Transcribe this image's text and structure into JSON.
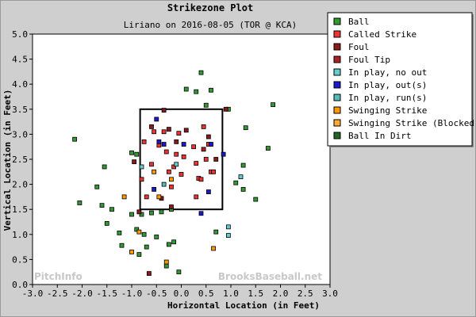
{
  "chart_data": {
    "type": "scatter",
    "title": "Strikezone Plot",
    "subtitle": "Liriano on 2016-08-05 (TOR @ KCA)",
    "xlabel": "Horizontal Location (in Feet)",
    "ylabel": "Vertical Location (in Feet)",
    "xlim": [
      -3.0,
      3.0
    ],
    "ylim": [
      0.0,
      5.0
    ],
    "x_ticks": [
      "-3.0",
      "-2.5",
      "-2.0",
      "-1.5",
      "-1.0",
      "-0.5",
      "0.0",
      "0.5",
      "1.0",
      "1.5",
      "2.0",
      "2.5",
      "3.0"
    ],
    "y_ticks": [
      "0.0",
      "0.5",
      "1.0",
      "1.5",
      "2.0",
      "2.5",
      "3.0",
      "3.5",
      "4.0",
      "4.5",
      "5.0"
    ],
    "grid": false,
    "legend_position": "right",
    "strike_zone": {
      "x": [
        -0.83,
        0.83
      ],
      "y": [
        1.5,
        3.5
      ]
    },
    "watermarks": [
      "PitchInfo",
      "BrooksBaseball.net"
    ],
    "series": [
      {
        "name": "Ball",
        "color": "#339933",
        "points": [
          [
            -2.15,
            2.9
          ],
          [
            -2.05,
            1.63
          ],
          [
            -1.7,
            1.95
          ],
          [
            -1.6,
            1.58
          ],
          [
            -1.55,
            2.35
          ],
          [
            -1.5,
            1.22
          ],
          [
            -1.4,
            1.5
          ],
          [
            -1.25,
            1.03
          ],
          [
            -1.2,
            0.78
          ],
          [
            -1.0,
            1.4
          ],
          [
            -0.9,
            1.1
          ],
          [
            -0.85,
            0.6
          ],
          [
            -0.8,
            1.4
          ],
          [
            -0.75,
            1.0
          ],
          [
            -0.7,
            0.75
          ],
          [
            -0.6,
            1.43
          ],
          [
            -0.5,
            0.95
          ],
          [
            -0.4,
            1.45
          ],
          [
            -0.3,
            0.37
          ],
          [
            -0.25,
            0.8
          ],
          [
            -0.2,
            1.5
          ],
          [
            -0.15,
            0.85
          ],
          [
            -0.05,
            0.25
          ],
          [
            0.1,
            3.9
          ],
          [
            0.3,
            3.85
          ],
          [
            0.4,
            4.23
          ],
          [
            0.5,
            3.58
          ],
          [
            0.6,
            3.88
          ],
          [
            0.7,
            1.05
          ],
          [
            0.95,
            3.5
          ],
          [
            1.1,
            2.03
          ],
          [
            1.25,
            2.38
          ],
          [
            1.25,
            1.9
          ],
          [
            1.3,
            3.13
          ],
          [
            1.5,
            1.7
          ],
          [
            1.75,
            2.72
          ],
          [
            1.85,
            3.59
          ],
          [
            -1.0,
            2.63
          ],
          [
            -0.9,
            2.6
          ]
        ]
      },
      {
        "name": "Called Strike",
        "color": "#ee3333",
        "points": [
          [
            -0.75,
            2.85
          ],
          [
            -0.6,
            2.4
          ],
          [
            -0.55,
            3.05
          ],
          [
            -0.45,
            2.78
          ],
          [
            -0.35,
            3.05
          ],
          [
            -0.3,
            2.65
          ],
          [
            -0.2,
            1.95
          ],
          [
            -0.15,
            2.35
          ],
          [
            -0.05,
            3.02
          ],
          [
            0.05,
            2.55
          ],
          [
            0.25,
            2.75
          ],
          [
            0.3,
            2.42
          ],
          [
            0.35,
            2.12
          ],
          [
            0.4,
            2.1
          ],
          [
            0.45,
            3.15
          ],
          [
            0.5,
            2.5
          ],
          [
            0.6,
            2.25
          ],
          [
            0.55,
            2.8
          ],
          [
            0.65,
            2.25
          ],
          [
            0.3,
            1.75
          ],
          [
            -0.8,
            2.1
          ],
          [
            -0.1,
            2.6
          ],
          [
            -0.7,
            1.75
          ],
          [
            -0.25,
            2.25
          ],
          [
            0.0,
            2.2
          ]
        ]
      },
      {
        "name": "Foul",
        "color": "#8b1a1a",
        "points": [
          [
            -0.85,
            1.45
          ],
          [
            -0.6,
            3.15
          ],
          [
            -0.25,
            3.1
          ],
          [
            -0.1,
            2.85
          ],
          [
            0.1,
            3.08
          ],
          [
            0.55,
            2.95
          ],
          [
            0.9,
            3.5
          ],
          [
            -0.95,
            2.45
          ],
          [
            -0.4,
            1.72
          ],
          [
            -0.2,
            1.55
          ],
          [
            0.7,
            2.5
          ],
          [
            -0.65,
            0.22
          ],
          [
            -0.35,
            3.48
          ]
        ]
      },
      {
        "name": "Foul Tip",
        "color": "#aa2222",
        "points": [
          [
            0.45,
            2.7
          ]
        ]
      },
      {
        "name": "In play, no out",
        "color": "#66cccc",
        "points": [
          [
            0.95,
            0.98
          ],
          [
            0.95,
            1.15
          ],
          [
            -0.1,
            2.4
          ],
          [
            1.2,
            2.15
          ],
          [
            -0.8,
            2.35
          ]
        ]
      },
      {
        "name": "In play, out(s)",
        "color": "#1a1acc",
        "points": [
          [
            -0.45,
            2.85
          ],
          [
            -0.55,
            1.9
          ],
          [
            -0.35,
            2.8
          ],
          [
            0.05,
            2.8
          ],
          [
            0.4,
            1.42
          ],
          [
            0.6,
            2.8
          ],
          [
            0.55,
            1.85
          ],
          [
            0.85,
            2.6
          ],
          [
            -0.5,
            3.3
          ]
        ]
      },
      {
        "name": "In play, run(s)",
        "color": "#55bbbb",
        "points": [
          [
            -0.35,
            2.0
          ]
        ]
      },
      {
        "name": "Swinging Strike",
        "color": "#ff9900",
        "points": [
          [
            -1.15,
            1.75
          ],
          [
            -1.0,
            0.65
          ],
          [
            -0.85,
            1.05
          ],
          [
            -0.45,
            1.75
          ],
          [
            -0.3,
            0.45
          ],
          [
            -0.2,
            2.1
          ],
          [
            0.65,
            0.72
          ],
          [
            -0.55,
            2.25
          ]
        ]
      },
      {
        "name": "Swinging Strike (Blocked)",
        "color": "#ffaa33",
        "points": []
      },
      {
        "name": "Ball In Dirt",
        "color": "#226622",
        "points": []
      }
    ]
  }
}
